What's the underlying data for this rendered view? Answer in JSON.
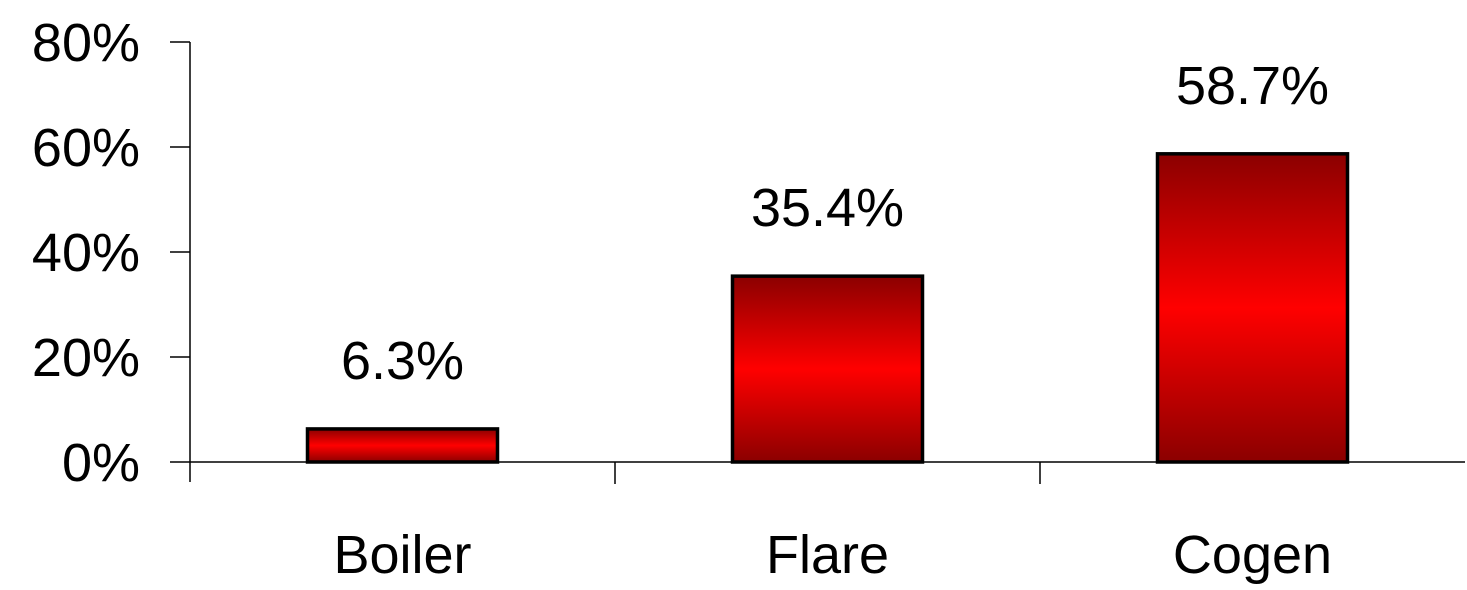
{
  "chart_data": {
    "type": "bar",
    "categories": [
      "Boiler",
      "Flare",
      "Cogen"
    ],
    "values": [
      6.3,
      35.4,
      58.7
    ],
    "value_labels": [
      "6.3%",
      "35.4%",
      "58.7%"
    ],
    "ylim": [
      0,
      80
    ],
    "yticks": [
      0,
      20,
      40,
      60,
      80
    ],
    "ytick_labels": [
      "0%",
      "20%",
      "40%",
      "60%",
      "80%"
    ],
    "title": "",
    "xlabel": "",
    "ylabel": "",
    "grid": false,
    "legend": "none",
    "colors": {
      "bar_edge": "#8b0000",
      "bar_center": "#ff0000",
      "bar_outline": "#000000",
      "axis": "#000000"
    }
  }
}
